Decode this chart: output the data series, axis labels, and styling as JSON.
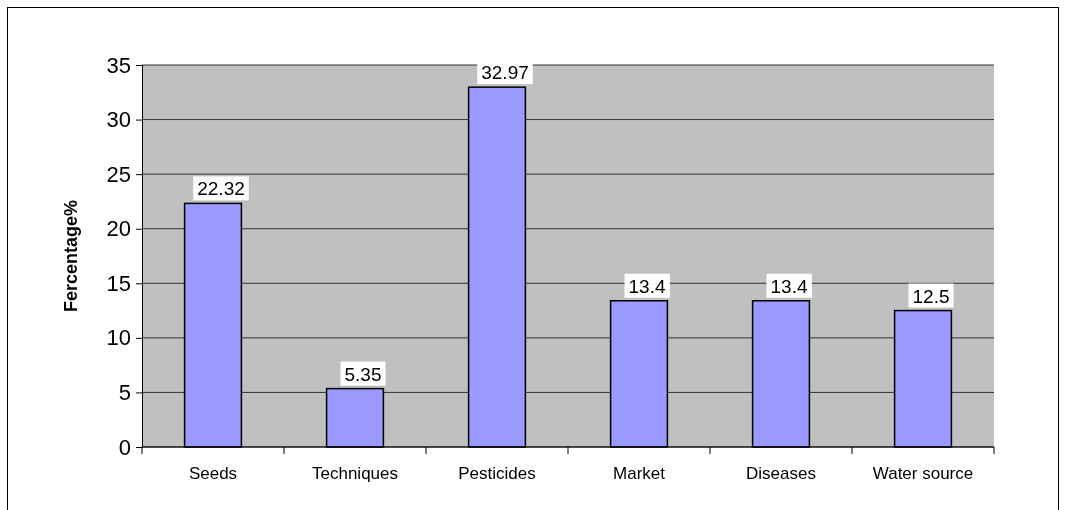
{
  "chart_data": {
    "type": "bar",
    "ylabel": "Fercentage%",
    "categories": [
      "Seeds",
      "Techniques",
      "Pesticides",
      "Market",
      "Diseases",
      "Water source"
    ],
    "values": [
      22.32,
      5.35,
      32.97,
      13.4,
      13.4,
      12.5
    ],
    "color": "#9999ff",
    "ylim": [
      0,
      35
    ],
    "yticks": [
      0,
      5,
      10,
      15,
      20,
      25,
      30,
      35
    ],
    "grid": "y",
    "data_labels": true
  }
}
